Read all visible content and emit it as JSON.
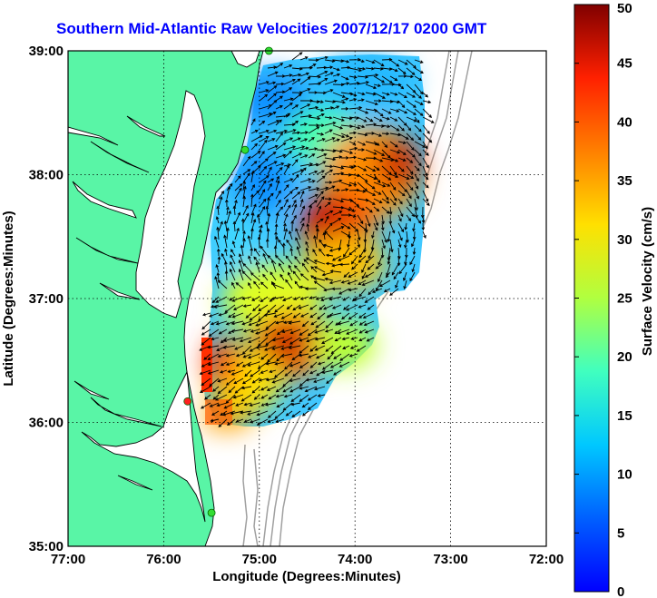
{
  "title": "Southern Mid-Atlantic Raw Velocities 2007/12/17 0200 GMT",
  "colors": {
    "land": "#59f5a6",
    "coast": "#000000",
    "bathymetry": "#a0a0a0",
    "grid": "#000000",
    "station": "#33dd33",
    "station_highlight": "#ff2020",
    "title": "#0000ff"
  },
  "axes": {
    "xlabel": "Longitude (Degrees:Minutes)",
    "ylabel": "Latitude (Degrees:Minutes)",
    "x_ticks": [
      "77:00",
      "76:00",
      "75:00",
      "74:00",
      "73:00",
      "72:00"
    ],
    "y_ticks": [
      "39:00",
      "38:00",
      "37:00",
      "36:00",
      "35:00"
    ],
    "x_range_deg_west": [
      77,
      72
    ],
    "y_range_deg_north": [
      35,
      39
    ]
  },
  "colorbar": {
    "label": "Surface Velocity (cm/s)",
    "ticks": [
      "0",
      "5",
      "10",
      "15",
      "20",
      "25",
      "30",
      "35",
      "40",
      "45",
      "50"
    ],
    "range": [
      0,
      50
    ],
    "colormap": "jet"
  },
  "chart_data": {
    "type": "heatmap",
    "title": "Southern Mid-Atlantic Raw Velocities 2007/12/17 0200 GMT",
    "xlabel": "Longitude (Degrees:Minutes)",
    "ylabel": "Latitude (Degrees:Minutes)",
    "value_label": "Surface Velocity (cm/s)",
    "value_range": [
      0,
      50
    ],
    "hotspots": [
      {
        "lon": -73.75,
        "lat": 37.7,
        "speed": 42
      },
      {
        "lon": -74.1,
        "lat": 37.75,
        "speed": 44
      },
      {
        "lon": -74.85,
        "lat": 36.65,
        "speed": 44
      },
      {
        "lon": -75.5,
        "lat": 36.45,
        "speed": 38
      },
      {
        "lon": -74.9,
        "lat": 38.6,
        "speed": 10
      },
      {
        "lon": -75.0,
        "lat": 37.9,
        "speed": 8
      },
      {
        "lon": -74.5,
        "lat": 38.8,
        "speed": 12
      },
      {
        "lon": -74.0,
        "lat": 36.7,
        "speed": 25
      }
    ],
    "stations": [
      {
        "lon": -74.9,
        "lat": 39.0,
        "highlight": false
      },
      {
        "lon": -75.15,
        "lat": 38.2,
        "highlight": false
      },
      {
        "lon": -75.75,
        "lat": 36.17,
        "highlight": true
      },
      {
        "lon": -75.5,
        "lat": 35.27,
        "highlight": false
      }
    ]
  }
}
